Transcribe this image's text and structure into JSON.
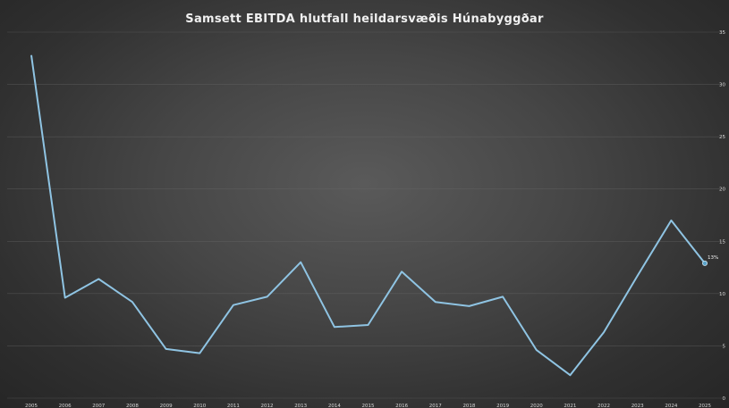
{
  "chart_data": {
    "type": "line",
    "title": "Samsett EBITDA hlutfall heildarsvæðis Húnabyggðar",
    "xlabel": "",
    "ylabel": "",
    "categories": [
      "2005",
      "2006",
      "2007",
      "2008",
      "2009",
      "2010",
      "2011",
      "2012",
      "2013",
      "2014",
      "2015",
      "2016",
      "2017",
      "2018",
      "2019",
      "2020",
      "2021",
      "2022",
      "2023",
      "2024",
      "2025"
    ],
    "series": [
      {
        "values": [
          32.8,
          9.6,
          11.4,
          9.2,
          4.7,
          4.3,
          8.9,
          9.7,
          13.0,
          6.8,
          7.0,
          12.1,
          9.2,
          8.8,
          9.7,
          4.6,
          2.2,
          6.3,
          11.7,
          17.0,
          12.9
        ]
      }
    ],
    "y_ticks": [
      "0",
      "5",
      "10",
      "15",
      "20",
      "25",
      "30",
      "35"
    ],
    "ylim": [
      0,
      35
    ],
    "grid": true,
    "legend": "none",
    "data_labels": [
      {
        "index": 20,
        "text": "13%"
      }
    ],
    "colors": {
      "line": "#8fc4e3",
      "marker": "#5aa3c9",
      "background": "#3f3f3f"
    }
  }
}
